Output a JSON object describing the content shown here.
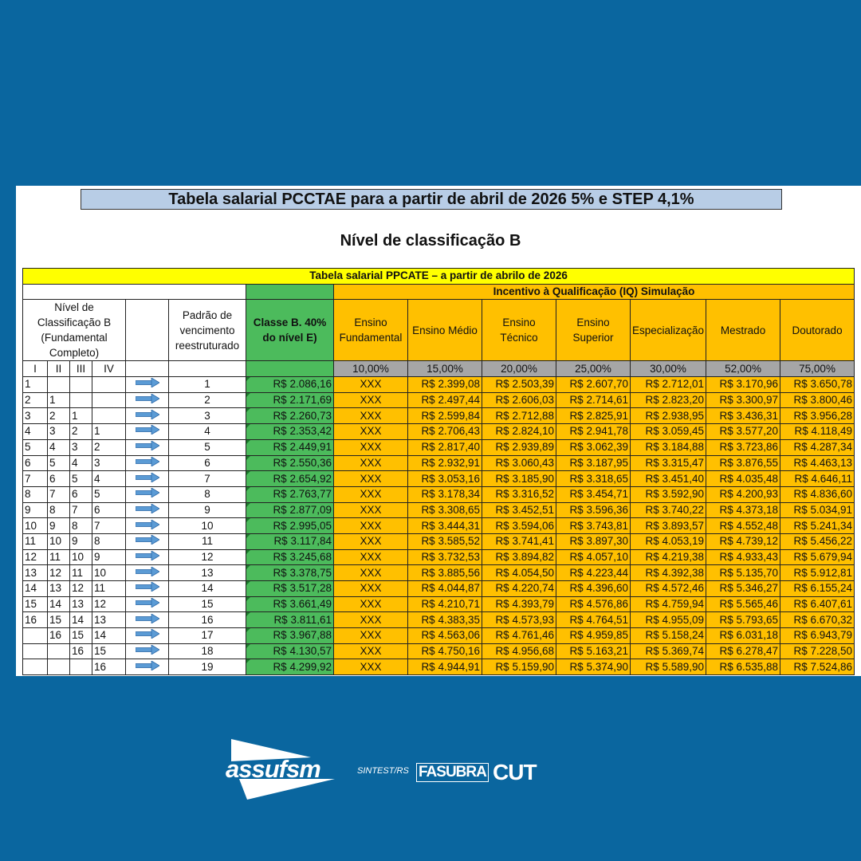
{
  "main_title": "Tabela salarial PCCTAE para a partir de abril de 2026 5% e STEP 4,1%",
  "sub_title": "Nível de classificação B",
  "table": {
    "title": "Tabela salarial PPCATE – a partir de abrilo de 2026",
    "iq_title": "Incentivo à Qualificação (IQ) Simulação",
    "nivel_header": "Nível de Classificação B (Fundamental Completo)",
    "padrao_header": "Padrão de vencimento reestruturado",
    "classe_header": "Classe B. 40% do nível E)",
    "sub_levels": [
      "I",
      "II",
      "III",
      "IV"
    ],
    "iq_columns": [
      {
        "label": "Ensino Fundamental",
        "pct": "10,00%"
      },
      {
        "label": "Ensino Médio",
        "pct": "15,00%"
      },
      {
        "label": "Ensino Técnico",
        "pct": "20,00%"
      },
      {
        "label": "Ensino Superior",
        "pct": "25,00%"
      },
      {
        "label": "Especialização",
        "pct": "30,00%"
      },
      {
        "label": "Mestrado",
        "pct": "52,00%"
      },
      {
        "label": "Doutorado",
        "pct": "75,00%"
      }
    ],
    "rows": [
      {
        "levels": [
          "1",
          "",
          "",
          ""
        ],
        "padrao": "1",
        "classe": "R$ 2.086,16",
        "iq": [
          "XXX",
          "R$ 2.399,08",
          "R$ 2.503,39",
          "R$ 2.607,70",
          "R$ 2.712,01",
          "R$ 3.170,96",
          "R$ 3.650,78"
        ]
      },
      {
        "levels": [
          "2",
          "1",
          "",
          ""
        ],
        "padrao": "2",
        "classe": "R$ 2.171,69",
        "iq": [
          "XXX",
          "R$ 2.497,44",
          "R$ 2.606,03",
          "R$ 2.714,61",
          "R$ 2.823,20",
          "R$ 3.300,97",
          "R$ 3.800,46"
        ]
      },
      {
        "levels": [
          "3",
          "2",
          "1",
          ""
        ],
        "padrao": "3",
        "classe": "R$ 2.260,73",
        "iq": [
          "XXX",
          "R$ 2.599,84",
          "R$ 2.712,88",
          "R$ 2.825,91",
          "R$ 2.938,95",
          "R$ 3.436,31",
          "R$ 3.956,28"
        ]
      },
      {
        "levels": [
          "4",
          "3",
          "2",
          "1"
        ],
        "padrao": "4",
        "classe": "R$ 2.353,42",
        "iq": [
          "XXX",
          "R$ 2.706,43",
          "R$ 2.824,10",
          "R$ 2.941,78",
          "R$ 3.059,45",
          "R$ 3.577,20",
          "R$ 4.118,49"
        ]
      },
      {
        "levels": [
          "5",
          "4",
          "3",
          "2"
        ],
        "padrao": "5",
        "classe": "R$ 2.449,91",
        "iq": [
          "XXX",
          "R$ 2.817,40",
          "R$ 2.939,89",
          "R$ 3.062,39",
          "R$ 3.184,88",
          "R$ 3.723,86",
          "R$ 4.287,34"
        ]
      },
      {
        "levels": [
          "6",
          "5",
          "4",
          "3"
        ],
        "padrao": "6",
        "classe": "R$ 2.550,36",
        "iq": [
          "XXX",
          "R$ 2.932,91",
          "R$ 3.060,43",
          "R$ 3.187,95",
          "R$ 3.315,47",
          "R$ 3.876,55",
          "R$ 4.463,13"
        ]
      },
      {
        "levels": [
          "7",
          "6",
          "5",
          "4"
        ],
        "padrao": "7",
        "classe": "R$ 2.654,92",
        "iq": [
          "XXX",
          "R$ 3.053,16",
          "R$ 3.185,90",
          "R$ 3.318,65",
          "R$ 3.451,40",
          "R$ 4.035,48",
          "R$ 4.646,11"
        ]
      },
      {
        "levels": [
          "8",
          "7",
          "6",
          "5"
        ],
        "padrao": "8",
        "classe": "R$ 2.763,77",
        "iq": [
          "XXX",
          "R$ 3.178,34",
          "R$ 3.316,52",
          "R$ 3.454,71",
          "R$ 3.592,90",
          "R$ 4.200,93",
          "R$ 4.836,60"
        ]
      },
      {
        "levels": [
          "9",
          "8",
          "7",
          "6"
        ],
        "padrao": "9",
        "classe": "R$ 2.877,09",
        "iq": [
          "XXX",
          "R$ 3.308,65",
          "R$ 3.452,51",
          "R$ 3.596,36",
          "R$ 3.740,22",
          "R$ 4.373,18",
          "R$ 5.034,91"
        ]
      },
      {
        "levels": [
          "10",
          "9",
          "8",
          "7"
        ],
        "padrao": "10",
        "classe": "R$ 2.995,05",
        "iq": [
          "XXX",
          "R$ 3.444,31",
          "R$ 3.594,06",
          "R$ 3.743,81",
          "R$ 3.893,57",
          "R$ 4.552,48",
          "R$ 5.241,34"
        ]
      },
      {
        "levels": [
          "11",
          "10",
          "9",
          "8"
        ],
        "padrao": "11",
        "classe": "R$ 3.117,84",
        "iq": [
          "XXX",
          "R$ 3.585,52",
          "R$ 3.741,41",
          "R$ 3.897,30",
          "R$ 4.053,19",
          "R$ 4.739,12",
          "R$ 5.456,22"
        ]
      },
      {
        "levels": [
          "12",
          "11",
          "10",
          "9"
        ],
        "padrao": "12",
        "classe": "R$ 3.245,68",
        "iq": [
          "XXX",
          "R$ 3.732,53",
          "R$ 3.894,82",
          "R$ 4.057,10",
          "R$ 4.219,38",
          "R$ 4.933,43",
          "R$ 5.679,94"
        ]
      },
      {
        "levels": [
          "13",
          "12",
          "11",
          "10"
        ],
        "padrao": "13",
        "classe": "R$ 3.378,75",
        "iq": [
          "XXX",
          "R$ 3.885,56",
          "R$ 4.054,50",
          "R$ 4.223,44",
          "R$ 4.392,38",
          "R$ 5.135,70",
          "R$ 5.912,81"
        ]
      },
      {
        "levels": [
          "14",
          "13",
          "12",
          "11"
        ],
        "padrao": "14",
        "classe": "R$ 3.517,28",
        "iq": [
          "XXX",
          "R$ 4.044,87",
          "R$ 4.220,74",
          "R$ 4.396,60",
          "R$ 4.572,46",
          "R$ 5.346,27",
          "R$ 6.155,24"
        ]
      },
      {
        "levels": [
          "15",
          "14",
          "13",
          "12"
        ],
        "padrao": "15",
        "classe": "R$ 3.661,49",
        "iq": [
          "XXX",
          "R$ 4.210,71",
          "R$ 4.393,79",
          "R$ 4.576,86",
          "R$ 4.759,94",
          "R$ 5.565,46",
          "R$ 6.407,61"
        ]
      },
      {
        "levels": [
          "16",
          "15",
          "14",
          "13"
        ],
        "padrao": "16",
        "classe": "R$ 3.811,61",
        "iq": [
          "XXX",
          "R$ 4.383,35",
          "R$ 4.573,93",
          "R$ 4.764,51",
          "R$ 4.955,09",
          "R$ 5.793,65",
          "R$ 6.670,32"
        ]
      },
      {
        "levels": [
          "",
          "16",
          "15",
          "14"
        ],
        "padrao": "17",
        "classe": "R$ 3.967,88",
        "iq": [
          "XXX",
          "R$ 4.563,06",
          "R$ 4.761,46",
          "R$ 4.959,85",
          "R$ 5.158,24",
          "R$ 6.031,18",
          "R$ 6.943,79"
        ]
      },
      {
        "levels": [
          "",
          "",
          "16",
          "15"
        ],
        "padrao": "18",
        "classe": "R$ 4.130,57",
        "iq": [
          "XXX",
          "R$ 4.750,16",
          "R$ 4.956,68",
          "R$ 5.163,21",
          "R$ 5.369,74",
          "R$ 6.278,47",
          "R$ 7.228,50"
        ]
      },
      {
        "levels": [
          "",
          "",
          "",
          "16"
        ],
        "padrao": "19",
        "classe": "R$ 4.299,92",
        "iq": [
          "XXX",
          "R$ 4.944,91",
          "R$ 5.159,90",
          "R$ 5.374,90",
          "R$ 5.589,90",
          "R$ 6.535,88",
          "R$ 7.524,86"
        ]
      }
    ],
    "arrow_icon": "right-arrow-icon"
  },
  "logos": {
    "assufsm": "assufsm",
    "sintest": "SINTEST/RS",
    "fasubra": "FASUBRA",
    "cut": "CUT"
  },
  "colors": {
    "background": "#0a669f",
    "title_bar": "#b8cde6",
    "table_title": "#ffff00",
    "classe": "#4cbb5c",
    "iq": "#ffc000",
    "pct_row": "#a6a6a6"
  }
}
